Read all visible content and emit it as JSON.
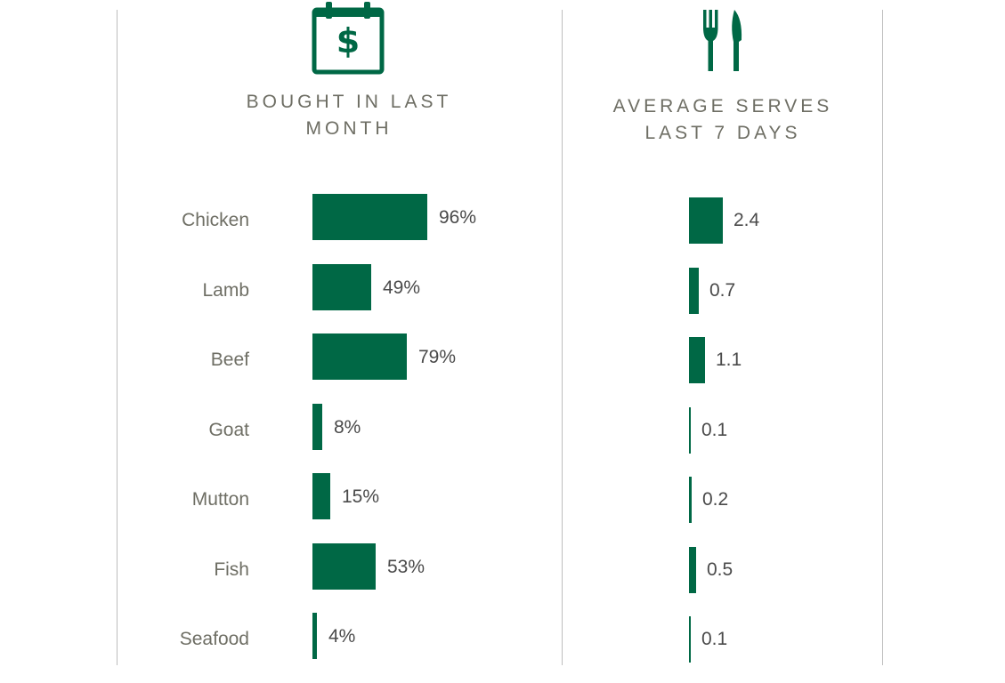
{
  "colors": {
    "bar": "#006845",
    "label_text": "#6e6e64",
    "value_text": "#4a4a4a",
    "divider": "#bdbdbd"
  },
  "icons": {
    "left": "calendar-dollar-icon",
    "right": "fork-knife-icon"
  },
  "chart_data": [
    {
      "type": "bar",
      "orientation": "horizontal",
      "title_lines": [
        "BOUGHT IN LAST",
        "MONTH"
      ],
      "categories": [
        "Chicken",
        "Lamb",
        "Beef",
        "Goat",
        "Mutton",
        "Fish",
        "Seafood"
      ],
      "values": [
        96,
        49,
        79,
        8,
        15,
        53,
        4
      ],
      "value_labels": [
        "96%",
        "49%",
        "79%",
        "8%",
        "15%",
        "53%",
        "4%"
      ],
      "unit": "%",
      "xlim": [
        0,
        100
      ],
      "grid": false,
      "legend": "none"
    },
    {
      "type": "bar",
      "orientation": "horizontal",
      "title_lines": [
        "AVERAGE SERVES",
        "LAST 7 DAYS"
      ],
      "categories": [
        "Chicken",
        "Lamb",
        "Beef",
        "Goat",
        "Mutton",
        "Fish",
        "Seafood"
      ],
      "values": [
        2.4,
        0.7,
        1.1,
        0.1,
        0.2,
        0.5,
        0.1
      ],
      "value_labels": [
        "2.4",
        "0.7",
        "1.1",
        "0.1",
        "0.2",
        "0.5",
        "0.1"
      ],
      "xlim": [
        0,
        10
      ],
      "grid": false,
      "legend": "none"
    }
  ]
}
